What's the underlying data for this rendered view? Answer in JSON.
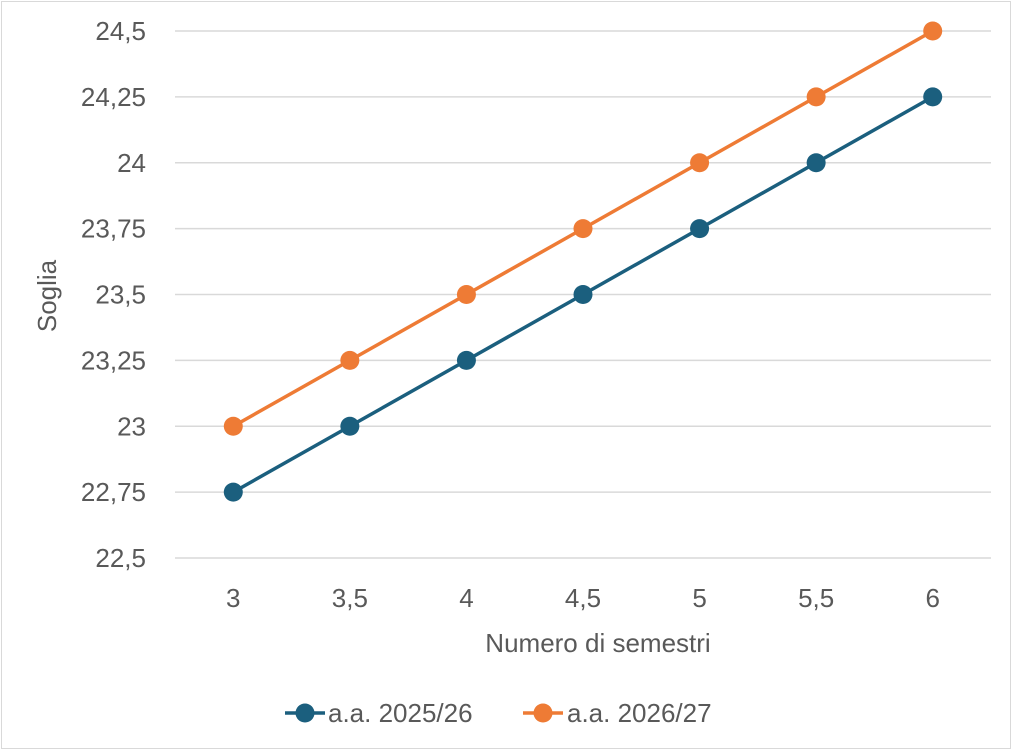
{
  "chart_data": {
    "type": "line",
    "title": "",
    "xlabel": "Numero di semestri",
    "ylabel": "Soglia",
    "x": [
      3,
      3.5,
      4,
      4.5,
      5,
      5.5,
      6
    ],
    "x_tick_labels": [
      "3",
      "3,5",
      "4",
      "4,5",
      "5",
      "5,5",
      "6"
    ],
    "ylim": [
      22.5,
      24.5
    ],
    "y_ticks": [
      22.5,
      22.75,
      23,
      23.25,
      23.5,
      23.75,
      24,
      24.25,
      24.5
    ],
    "y_tick_labels": [
      "22,5",
      "22,75",
      "23",
      "23,25",
      "23,5",
      "23,75",
      "24",
      "24,25",
      "24,5"
    ],
    "grid": "horizontal",
    "legend_position": "bottom",
    "series": [
      {
        "name": "a.a. 2025/26",
        "color": "#1b5f7e",
        "values": [
          22.75,
          23,
          23.25,
          23.5,
          23.75,
          24,
          24.25
        ]
      },
      {
        "name": "a.a. 2026/27",
        "color": "#ee7b35",
        "values": [
          23,
          23.25,
          23.5,
          23.75,
          24,
          24.25,
          24.5
        ]
      }
    ]
  }
}
